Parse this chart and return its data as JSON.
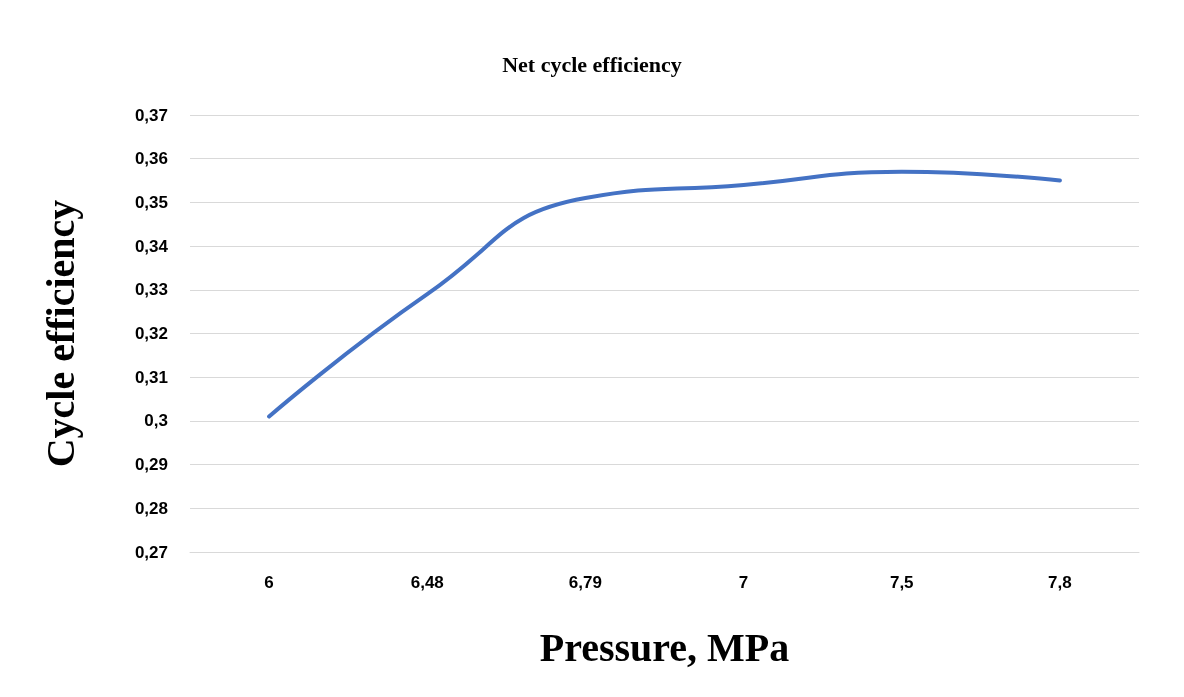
{
  "chart_data": {
    "type": "line",
    "title": "Net cycle efficiency",
    "xlabel": "Pressure, MPa",
    "ylabel": "Cycle efficiency",
    "categories": [
      "6",
      "6,48",
      "6,79",
      "7",
      "7,5",
      "7,8"
    ],
    "series": [
      {
        "color": "#4472c4",
        "values": [
          0.301,
          0.329,
          0.351,
          0.354,
          0.357,
          0.355
        ]
      }
    ],
    "ylim": [
      0.27,
      0.37
    ],
    "yticks": [
      {
        "value": 0.27,
        "label": "0,27"
      },
      {
        "value": 0.28,
        "label": "0,28"
      },
      {
        "value": 0.29,
        "label": "0,29"
      },
      {
        "value": 0.3,
        "label": "0,3"
      },
      {
        "value": 0.31,
        "label": "0,31"
      },
      {
        "value": 0.32,
        "label": "0,32"
      },
      {
        "value": 0.33,
        "label": "0,33"
      },
      {
        "value": 0.34,
        "label": "0,34"
      },
      {
        "value": 0.35,
        "label": "0,35"
      },
      {
        "value": 0.36,
        "label": "0,36"
      },
      {
        "value": 0.37,
        "label": "0,37"
      }
    ],
    "grid": "y",
    "marker": "none",
    "line_style": "solid"
  }
}
